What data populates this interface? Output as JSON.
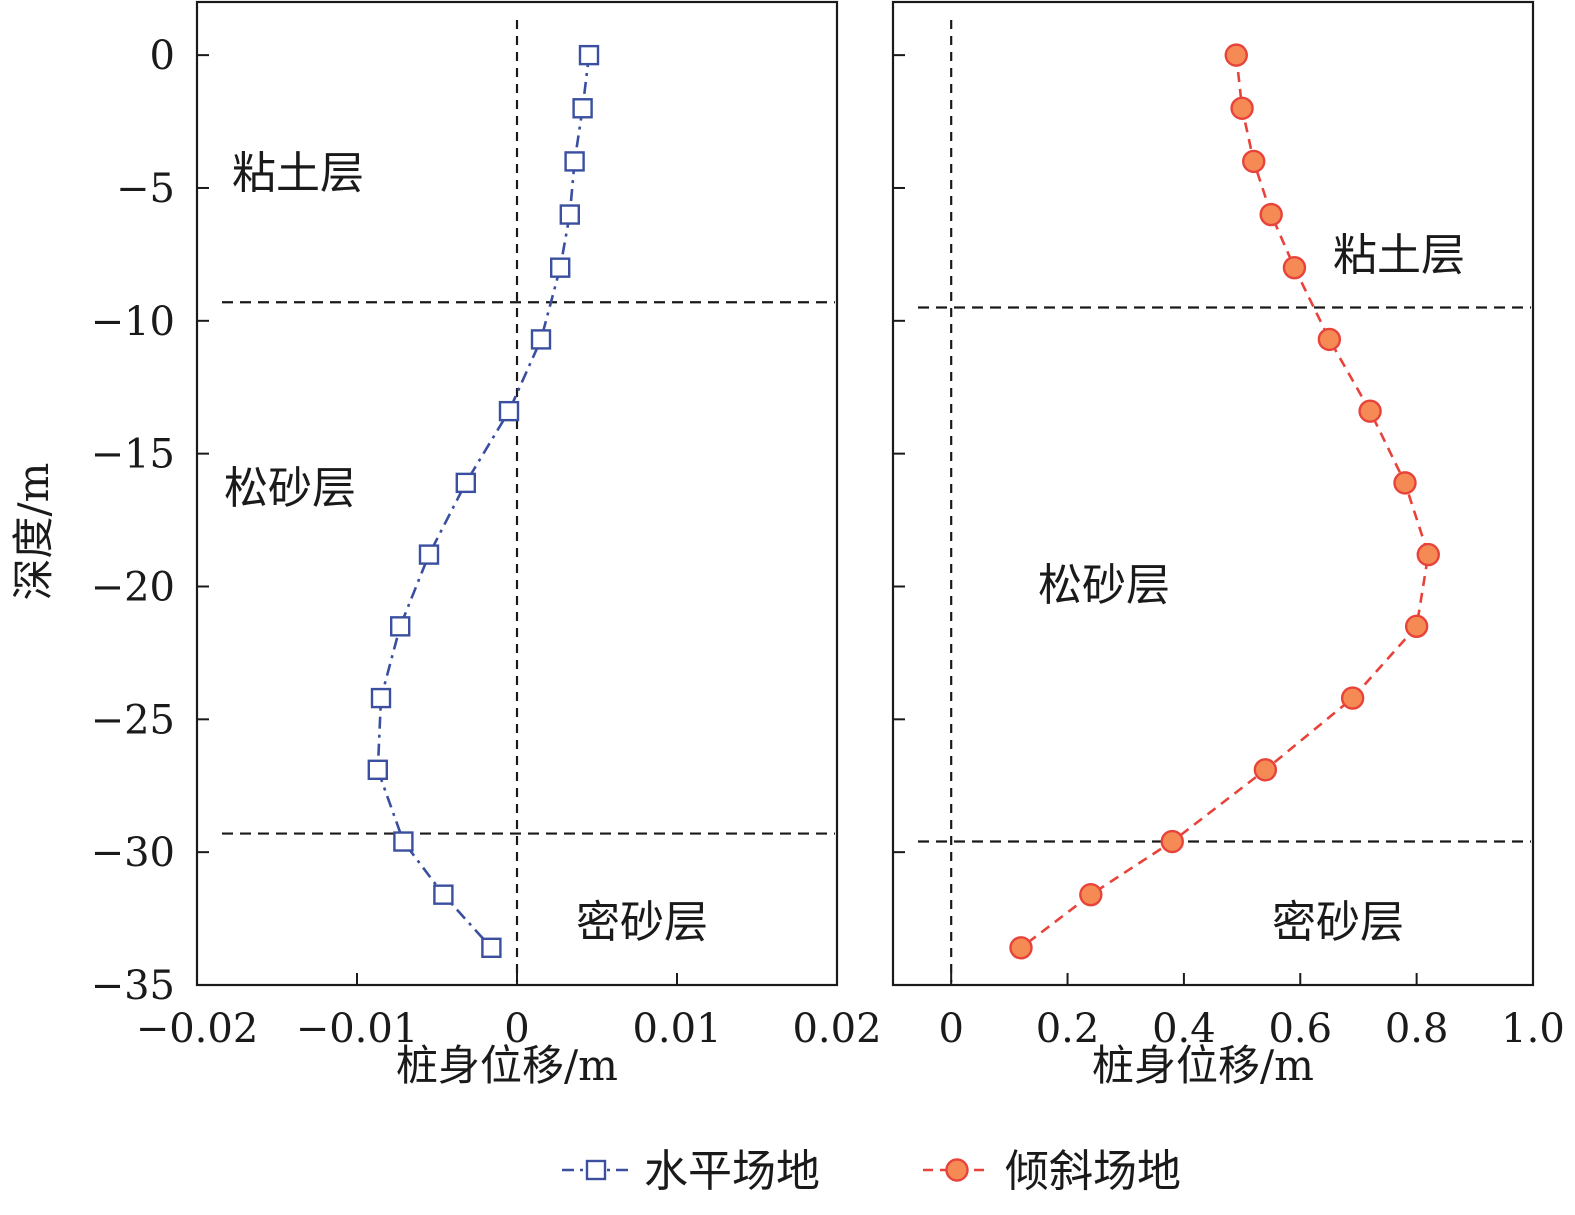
{
  "chart_data": [
    {
      "type": "line",
      "panel": "left",
      "xlabel": "桩身位移/m",
      "ylabel": "深度/m",
      "xlim": [
        -0.02,
        0.02
      ],
      "ylim": [
        -35,
        2
      ],
      "x_ticks": [
        -0.02,
        -0.01,
        0,
        0.01,
        0.02
      ],
      "x_tick_labels": [
        "−0.02",
        "−0.01",
        "0",
        "0.01",
        "0.02"
      ],
      "y_ticks": [
        0,
        -5,
        -10,
        -15,
        -20,
        -25,
        -30,
        -35
      ],
      "y_tick_labels": [
        "0",
        "−5",
        "−10",
        "−15",
        "−20",
        "−25",
        "−30",
        "−35"
      ],
      "grid": false,
      "reference_lines": {
        "x": 0,
        "layer_boundaries_y": [
          -9.3,
          -29.3
        ]
      },
      "layer_labels": [
        "粘土层",
        "松砂层",
        "密砂层"
      ],
      "series": [
        {
          "name": "水平场地",
          "color": "#3a4fa0",
          "marker": "square",
          "line_style": "dash-dot",
          "x": [
            0.0045,
            0.0041,
            0.0036,
            0.0033,
            0.0027,
            0.0015,
            -0.0005,
            -0.0032,
            -0.0055,
            -0.0073,
            -0.0085,
            -0.0087,
            -0.0071,
            -0.0046,
            -0.0016
          ],
          "y": [
            0,
            -2,
            -4,
            -6,
            -8,
            -10.7,
            -13.4,
            -16.1,
            -18.8,
            -21.5,
            -24.2,
            -26.9,
            -29.6,
            -31.6,
            -33.6
          ]
        }
      ]
    },
    {
      "type": "line",
      "panel": "right",
      "xlabel": "桩身位移/m",
      "ylabel": "",
      "xlim": [
        -0.1,
        1.0
      ],
      "ylim": [
        -35,
        2
      ],
      "x_ticks": [
        0,
        0.2,
        0.4,
        0.6,
        0.8,
        1.0
      ],
      "x_tick_labels": [
        "0",
        "0.2",
        "0.4",
        "0.6",
        "0.8",
        "1.0"
      ],
      "y_ticks": [
        0,
        -5,
        -10,
        -15,
        -20,
        -25,
        -30,
        -35
      ],
      "grid": false,
      "reference_lines": {
        "x": 0,
        "layer_boundaries_y": [
          -9.5,
          -29.6
        ]
      },
      "layer_labels": [
        "粘土层",
        "松砂层",
        "密砂层"
      ],
      "series": [
        {
          "name": "倾斜场地",
          "color": "#e8433a",
          "marker_fill": "#f58a55",
          "marker": "circle",
          "line_style": "dashed",
          "x": [
            0.49,
            0.5,
            0.52,
            0.55,
            0.59,
            0.65,
            0.72,
            0.78,
            0.82,
            0.8,
            0.69,
            0.54,
            0.38,
            0.24,
            0.12
          ],
          "y": [
            0,
            -2,
            -4,
            -6,
            -8,
            -10.7,
            -13.4,
            -16.1,
            -18.8,
            -21.5,
            -24.2,
            -26.9,
            -29.6,
            -31.6,
            -33.6
          ]
        }
      ]
    }
  ],
  "legend": {
    "placement": "bottom-center",
    "items": [
      {
        "label": "水平场地",
        "color": "#3a4fa0",
        "marker": "square"
      },
      {
        "label": "倾斜场地",
        "color": "#e8433a",
        "marker": "circle"
      }
    ]
  }
}
